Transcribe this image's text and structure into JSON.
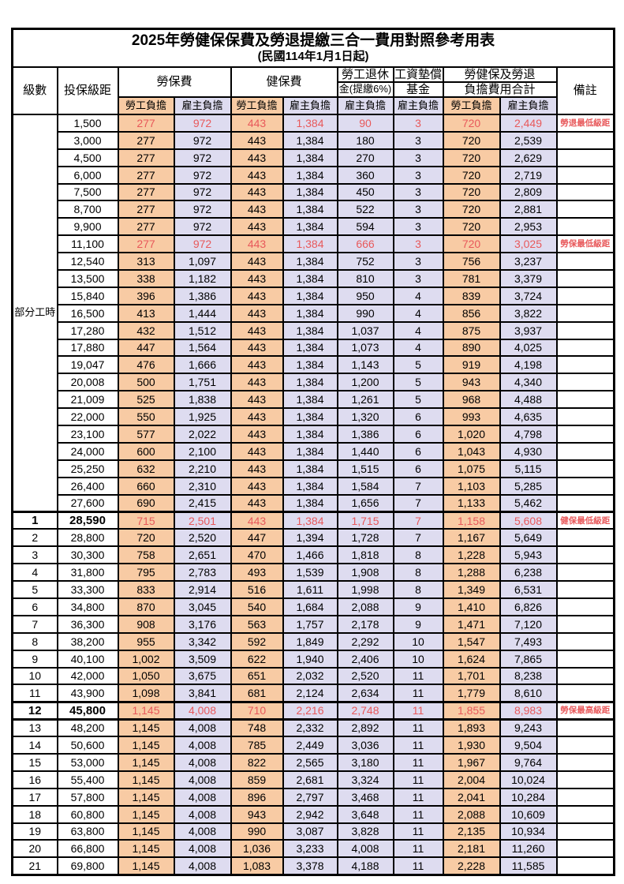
{
  "title": "2025年勞健保保費及勞退提繳三合一費用對照參考用表",
  "subtitle": "(民國114年1月1日起)",
  "colors": {
    "employee_bg": "#F8CBA4",
    "employer_bg": "#DEDCF0",
    "highlight_red": "#E8595B",
    "border": "#000000"
  },
  "header": {
    "level": "級數",
    "bracket": "投保級距",
    "labor_insurance": "勞保費",
    "health_insurance": "健保費",
    "pension_line1": "勞工退休",
    "pension_line2": "金(提繳6%)",
    "wage_fund_line1": "工資墊償",
    "wage_fund_line2": "基金",
    "total_line1": "勞健保及勞退",
    "total_line2": "負擔費用合計",
    "note": "備註",
    "employee_burden": "勞工負擔",
    "employer_burden": "雇主負擔"
  },
  "part_time_label": "部分工時",
  "rows": [
    {
      "level": "",
      "bracket": "1,500",
      "values": [
        "277",
        "972",
        "443",
        "1,384",
        "90",
        "3",
        "720",
        "2,449"
      ],
      "note": "勞退最低級距",
      "highlight": true,
      "bold": false
    },
    {
      "level": "",
      "bracket": "3,000",
      "values": [
        "277",
        "972",
        "443",
        "1,384",
        "180",
        "3",
        "720",
        "2,539"
      ],
      "note": "",
      "highlight": false,
      "bold": false
    },
    {
      "level": "",
      "bracket": "4,500",
      "values": [
        "277",
        "972",
        "443",
        "1,384",
        "270",
        "3",
        "720",
        "2,629"
      ],
      "note": "",
      "highlight": false,
      "bold": false
    },
    {
      "level": "",
      "bracket": "6,000",
      "values": [
        "277",
        "972",
        "443",
        "1,384",
        "360",
        "3",
        "720",
        "2,719"
      ],
      "note": "",
      "highlight": false,
      "bold": false
    },
    {
      "level": "",
      "bracket": "7,500",
      "values": [
        "277",
        "972",
        "443",
        "1,384",
        "450",
        "3",
        "720",
        "2,809"
      ],
      "note": "",
      "highlight": false,
      "bold": false
    },
    {
      "level": "",
      "bracket": "8,700",
      "values": [
        "277",
        "972",
        "443",
        "1,384",
        "522",
        "3",
        "720",
        "2,881"
      ],
      "note": "",
      "highlight": false,
      "bold": false
    },
    {
      "level": "",
      "bracket": "9,900",
      "values": [
        "277",
        "972",
        "443",
        "1,384",
        "594",
        "3",
        "720",
        "2,953"
      ],
      "note": "",
      "highlight": false,
      "bold": false
    },
    {
      "level": "",
      "bracket": "11,100",
      "values": [
        "277",
        "972",
        "443",
        "1,384",
        "666",
        "3",
        "720",
        "3,025"
      ],
      "note": "勞保最低級距",
      "highlight": true,
      "bold": false
    },
    {
      "level": "",
      "bracket": "12,540",
      "values": [
        "313",
        "1,097",
        "443",
        "1,384",
        "752",
        "3",
        "756",
        "3,237"
      ],
      "note": "",
      "highlight": false,
      "bold": false
    },
    {
      "level": "",
      "bracket": "13,500",
      "values": [
        "338",
        "1,182",
        "443",
        "1,384",
        "810",
        "3",
        "781",
        "3,379"
      ],
      "note": "",
      "highlight": false,
      "bold": false
    },
    {
      "level": "",
      "bracket": "15,840",
      "values": [
        "396",
        "1,386",
        "443",
        "1,384",
        "950",
        "4",
        "839",
        "3,724"
      ],
      "note": "",
      "highlight": false,
      "bold": false
    },
    {
      "level": "",
      "bracket": "16,500",
      "values": [
        "413",
        "1,444",
        "443",
        "1,384",
        "990",
        "4",
        "856",
        "3,822"
      ],
      "note": "",
      "highlight": false,
      "bold": false
    },
    {
      "level": "",
      "bracket": "17,280",
      "values": [
        "432",
        "1,512",
        "443",
        "1,384",
        "1,037",
        "4",
        "875",
        "3,937"
      ],
      "note": "",
      "highlight": false,
      "bold": false
    },
    {
      "level": "",
      "bracket": "17,880",
      "values": [
        "447",
        "1,564",
        "443",
        "1,384",
        "1,073",
        "4",
        "890",
        "4,025"
      ],
      "note": "",
      "highlight": false,
      "bold": false
    },
    {
      "level": "",
      "bracket": "19,047",
      "values": [
        "476",
        "1,666",
        "443",
        "1,384",
        "1,143",
        "5",
        "919",
        "4,198"
      ],
      "note": "",
      "highlight": false,
      "bold": false
    },
    {
      "level": "",
      "bracket": "20,008",
      "values": [
        "500",
        "1,751",
        "443",
        "1,384",
        "1,200",
        "5",
        "943",
        "4,340"
      ],
      "note": "",
      "highlight": false,
      "bold": false
    },
    {
      "level": "",
      "bracket": "21,009",
      "values": [
        "525",
        "1,838",
        "443",
        "1,384",
        "1,261",
        "5",
        "968",
        "4,488"
      ],
      "note": "",
      "highlight": false,
      "bold": false
    },
    {
      "level": "",
      "bracket": "22,000",
      "values": [
        "550",
        "1,925",
        "443",
        "1,384",
        "1,320",
        "6",
        "993",
        "4,635"
      ],
      "note": "",
      "highlight": false,
      "bold": false
    },
    {
      "level": "",
      "bracket": "23,100",
      "values": [
        "577",
        "2,022",
        "443",
        "1,384",
        "1,386",
        "6",
        "1,020",
        "4,798"
      ],
      "note": "",
      "highlight": false,
      "bold": false
    },
    {
      "level": "",
      "bracket": "24,000",
      "values": [
        "600",
        "2,100",
        "443",
        "1,384",
        "1,440",
        "6",
        "1,043",
        "4,930"
      ],
      "note": "",
      "highlight": false,
      "bold": false
    },
    {
      "level": "",
      "bracket": "25,250",
      "values": [
        "632",
        "2,210",
        "443",
        "1,384",
        "1,515",
        "6",
        "1,075",
        "5,115"
      ],
      "note": "",
      "highlight": false,
      "bold": false
    },
    {
      "level": "",
      "bracket": "26,400",
      "values": [
        "660",
        "2,310",
        "443",
        "1,384",
        "1,584",
        "7",
        "1,103",
        "5,285"
      ],
      "note": "",
      "highlight": false,
      "bold": false
    },
    {
      "level": "",
      "bracket": "27,600",
      "values": [
        "690",
        "2,415",
        "443",
        "1,384",
        "1,656",
        "7",
        "1,133",
        "5,462"
      ],
      "note": "",
      "highlight": false,
      "bold": false
    },
    {
      "level": "1",
      "bracket": "28,590",
      "values": [
        "715",
        "2,501",
        "443",
        "1,384",
        "1,715",
        "7",
        "1,158",
        "5,608"
      ],
      "note": "健保最低級距",
      "highlight": true,
      "bold": true
    },
    {
      "level": "2",
      "bracket": "28,800",
      "values": [
        "720",
        "2,520",
        "447",
        "1,394",
        "1,728",
        "7",
        "1,167",
        "5,649"
      ],
      "note": "",
      "highlight": false,
      "bold": false
    },
    {
      "level": "3",
      "bracket": "30,300",
      "values": [
        "758",
        "2,651",
        "470",
        "1,466",
        "1,818",
        "8",
        "1,228",
        "5,943"
      ],
      "note": "",
      "highlight": false,
      "bold": false
    },
    {
      "level": "4",
      "bracket": "31,800",
      "values": [
        "795",
        "2,783",
        "493",
        "1,539",
        "1,908",
        "8",
        "1,288",
        "6,238"
      ],
      "note": "",
      "highlight": false,
      "bold": false
    },
    {
      "level": "5",
      "bracket": "33,300",
      "values": [
        "833",
        "2,914",
        "516",
        "1,611",
        "1,998",
        "8",
        "1,349",
        "6,531"
      ],
      "note": "",
      "highlight": false,
      "bold": false
    },
    {
      "level": "6",
      "bracket": "34,800",
      "values": [
        "870",
        "3,045",
        "540",
        "1,684",
        "2,088",
        "9",
        "1,410",
        "6,826"
      ],
      "note": "",
      "highlight": false,
      "bold": false
    },
    {
      "level": "7",
      "bracket": "36,300",
      "values": [
        "908",
        "3,176",
        "563",
        "1,757",
        "2,178",
        "9",
        "1,471",
        "7,120"
      ],
      "note": "",
      "highlight": false,
      "bold": false
    },
    {
      "level": "8",
      "bracket": "38,200",
      "values": [
        "955",
        "3,342",
        "592",
        "1,849",
        "2,292",
        "10",
        "1,547",
        "7,493"
      ],
      "note": "",
      "highlight": false,
      "bold": false
    },
    {
      "level": "9",
      "bracket": "40,100",
      "values": [
        "1,002",
        "3,509",
        "622",
        "1,940",
        "2,406",
        "10",
        "1,624",
        "7,865"
      ],
      "note": "",
      "highlight": false,
      "bold": false
    },
    {
      "level": "10",
      "bracket": "42,000",
      "values": [
        "1,050",
        "3,675",
        "651",
        "2,032",
        "2,520",
        "11",
        "1,701",
        "8,238"
      ],
      "note": "",
      "highlight": false,
      "bold": false
    },
    {
      "level": "11",
      "bracket": "43,900",
      "values": [
        "1,098",
        "3,841",
        "681",
        "2,124",
        "2,634",
        "11",
        "1,779",
        "8,610"
      ],
      "note": "",
      "highlight": false,
      "bold": false
    },
    {
      "level": "12",
      "bracket": "45,800",
      "values": [
        "1,145",
        "4,008",
        "710",
        "2,216",
        "2,748",
        "11",
        "1,855",
        "8,983"
      ],
      "note": "勞保最高級距",
      "highlight": true,
      "bold": true
    },
    {
      "level": "13",
      "bracket": "48,200",
      "values": [
        "1,145",
        "4,008",
        "748",
        "2,332",
        "2,892",
        "11",
        "1,893",
        "9,243"
      ],
      "note": "",
      "highlight": false,
      "bold": false
    },
    {
      "level": "14",
      "bracket": "50,600",
      "values": [
        "1,145",
        "4,008",
        "785",
        "2,449",
        "3,036",
        "11",
        "1,930",
        "9,504"
      ],
      "note": "",
      "highlight": false,
      "bold": false
    },
    {
      "level": "15",
      "bracket": "53,000",
      "values": [
        "1,145",
        "4,008",
        "822",
        "2,565",
        "3,180",
        "11",
        "1,967",
        "9,764"
      ],
      "note": "",
      "highlight": false,
      "bold": false
    },
    {
      "level": "16",
      "bracket": "55,400",
      "values": [
        "1,145",
        "4,008",
        "859",
        "2,681",
        "3,324",
        "11",
        "2,004",
        "10,024"
      ],
      "note": "",
      "highlight": false,
      "bold": false
    },
    {
      "level": "17",
      "bracket": "57,800",
      "values": [
        "1,145",
        "4,008",
        "896",
        "2,797",
        "3,468",
        "11",
        "2,041",
        "10,284"
      ],
      "note": "",
      "highlight": false,
      "bold": false
    },
    {
      "level": "18",
      "bracket": "60,800",
      "values": [
        "1,145",
        "4,008",
        "943",
        "2,942",
        "3,648",
        "11",
        "2,088",
        "10,609"
      ],
      "note": "",
      "highlight": false,
      "bold": false
    },
    {
      "level": "19",
      "bracket": "63,800",
      "values": [
        "1,145",
        "4,008",
        "990",
        "3,087",
        "3,828",
        "11",
        "2,135",
        "10,934"
      ],
      "note": "",
      "highlight": false,
      "bold": false
    },
    {
      "level": "20",
      "bracket": "66,800",
      "values": [
        "1,145",
        "4,008",
        "1,036",
        "3,233",
        "4,008",
        "11",
        "2,181",
        "11,260"
      ],
      "note": "",
      "highlight": false,
      "bold": false
    },
    {
      "level": "21",
      "bracket": "69,800",
      "values": [
        "1,145",
        "4,008",
        "1,083",
        "3,378",
        "4,188",
        "11",
        "2,228",
        "11,585"
      ],
      "note": "",
      "highlight": false,
      "bold": false
    }
  ],
  "part_time_row_count": 23,
  "value_column_kinds": [
    "emp",
    "er",
    "emp",
    "er",
    "er",
    "er",
    "emp",
    "er"
  ],
  "value_column_names": [
    "cell-labor-employee",
    "cell-labor-employer",
    "cell-health-employee",
    "cell-health-employer",
    "cell-pension-employer",
    "cell-wage-fund-employer",
    "cell-total-employee",
    "cell-total-employer"
  ]
}
